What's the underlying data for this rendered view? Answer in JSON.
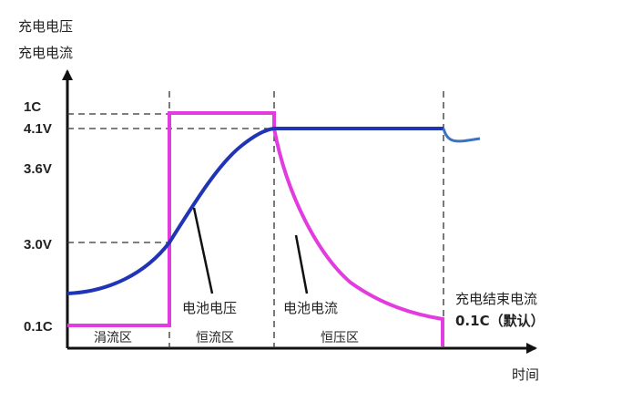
{
  "y_axis_title": [
    "充电电压",
    "充电电流"
  ],
  "x_axis_title": "时间",
  "y_ticks": [
    "1C",
    "4.1V",
    "3.6V",
    "3.0V",
    "0.1C"
  ],
  "zones": [
    "涓流区",
    "恒流区",
    "恒压区"
  ],
  "annotations": {
    "voltage_label": "电池电压",
    "current_label": "电池电流",
    "end_label_1": "充电结束电流",
    "end_label_2": "0.1C（默认）"
  },
  "colors": {
    "voltage_curve": "#1f35b5",
    "current_curve": "#e23ce0",
    "axis": "#111111"
  }
}
